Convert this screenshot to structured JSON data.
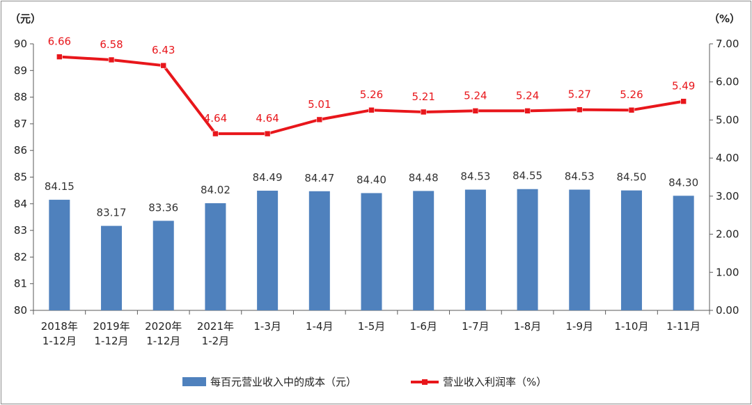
{
  "chart_data": {
    "type": "bar+line",
    "categories": [
      [
        "2018年",
        "1-12月"
      ],
      [
        "2019年",
        "1-12月"
      ],
      [
        "2020年",
        "1-12月"
      ],
      [
        "2021年",
        "1-2月"
      ],
      [
        "1-3月"
      ],
      [
        "1-4月"
      ],
      [
        "1-5月"
      ],
      [
        "1-6月"
      ],
      [
        "1-7月"
      ],
      [
        "1-8月"
      ],
      [
        "1-9月"
      ],
      [
        "1-10月"
      ],
      [
        "1-11月"
      ]
    ],
    "series": [
      {
        "name": "每百元营业收入中的成本（元）",
        "type": "bar",
        "axis": "left",
        "color": "#4f81bd",
        "values": [
          84.15,
          83.17,
          83.36,
          84.02,
          84.49,
          84.47,
          84.4,
          84.48,
          84.53,
          84.55,
          84.53,
          84.5,
          84.3
        ],
        "labels": [
          "84.15",
          "83.17",
          "83.36",
          "84.02",
          "84.49",
          "84.47",
          "84.40",
          "84.48",
          "84.53",
          "84.55",
          "84.53",
          "84.50",
          "84.30"
        ]
      },
      {
        "name": "营业收入利润率（%）",
        "type": "line",
        "axis": "right",
        "color": "#e8161b",
        "values": [
          6.66,
          6.58,
          6.43,
          4.64,
          4.64,
          5.01,
          5.26,
          5.21,
          5.24,
          5.24,
          5.27,
          5.26,
          5.49
        ],
        "labels": [
          "6.66",
          "6.58",
          "6.43",
          "4.64",
          "4.64",
          "5.01",
          "5.26",
          "5.21",
          "5.24",
          "5.24",
          "5.27",
          "5.26",
          "5.49"
        ]
      }
    ],
    "y_left": {
      "unit": "（元）",
      "range": [
        80,
        90
      ],
      "ticks": [
        "80",
        "81",
        "82",
        "83",
        "84",
        "85",
        "86",
        "87",
        "88",
        "89",
        "90"
      ]
    },
    "y_right": {
      "unit": "（%）",
      "range": [
        0,
        7
      ],
      "ticks": [
        "0.00",
        "1.00",
        "2.00",
        "3.00",
        "4.00",
        "5.00",
        "6.00",
        "7.00"
      ]
    },
    "grid": false,
    "legend_position": "bottom"
  }
}
